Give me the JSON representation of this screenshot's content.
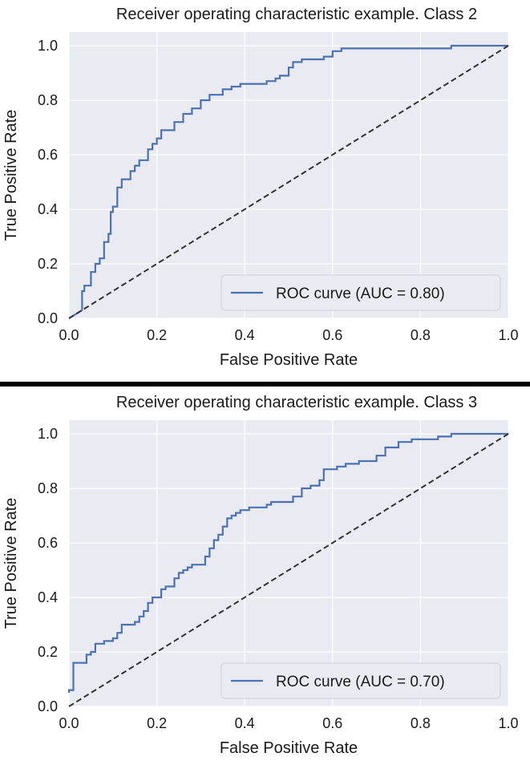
{
  "chart_data": [
    {
      "type": "line",
      "title": "Receiver operating characteristic example. Class 2",
      "xlabel": "False Positive Rate",
      "ylabel": "True Positive Rate",
      "xlim": [
        0,
        1
      ],
      "ylim": [
        0,
        1.05
      ],
      "xticks": [
        "0.0",
        "0.2",
        "0.4",
        "0.6",
        "0.8",
        "1.0"
      ],
      "yticks": [
        "0.0",
        "0.2",
        "0.4",
        "0.6",
        "0.8",
        "1.0"
      ],
      "grid": true,
      "legend_position": "lower-right",
      "series": [
        {
          "name": "ROC curve (AUC = 0.80)",
          "color": "#4c72b0",
          "x": [
            0.0,
            0.03,
            0.03,
            0.035,
            0.035,
            0.05,
            0.05,
            0.06,
            0.06,
            0.07,
            0.07,
            0.08,
            0.08,
            0.09,
            0.09,
            0.095,
            0.095,
            0.1,
            0.1,
            0.11,
            0.11,
            0.12,
            0.12,
            0.14,
            0.14,
            0.15,
            0.15,
            0.16,
            0.16,
            0.18,
            0.18,
            0.19,
            0.19,
            0.2,
            0.2,
            0.21,
            0.21,
            0.24,
            0.24,
            0.26,
            0.26,
            0.28,
            0.28,
            0.3,
            0.3,
            0.32,
            0.32,
            0.35,
            0.35,
            0.37,
            0.37,
            0.39,
            0.39,
            0.45,
            0.45,
            0.47,
            0.47,
            0.48,
            0.48,
            0.5,
            0.5,
            0.51,
            0.51,
            0.53,
            0.53,
            0.58,
            0.58,
            0.6,
            0.6,
            0.62,
            0.62,
            0.87,
            0.87,
            1.0
          ],
          "y": [
            0.0,
            0.03,
            0.1,
            0.1,
            0.12,
            0.12,
            0.17,
            0.17,
            0.2,
            0.2,
            0.22,
            0.22,
            0.28,
            0.28,
            0.31,
            0.31,
            0.39,
            0.39,
            0.41,
            0.41,
            0.48,
            0.48,
            0.51,
            0.51,
            0.54,
            0.54,
            0.56,
            0.56,
            0.58,
            0.58,
            0.62,
            0.62,
            0.64,
            0.64,
            0.66,
            0.66,
            0.69,
            0.69,
            0.72,
            0.72,
            0.75,
            0.75,
            0.77,
            0.77,
            0.8,
            0.8,
            0.82,
            0.82,
            0.84,
            0.84,
            0.85,
            0.85,
            0.86,
            0.86,
            0.87,
            0.87,
            0.88,
            0.88,
            0.89,
            0.89,
            0.92,
            0.92,
            0.94,
            0.94,
            0.95,
            0.95,
            0.96,
            0.96,
            0.98,
            0.98,
            0.99,
            0.99,
            1.0,
            1.0
          ]
        },
        {
          "color": "#333333",
          "style": "dashed",
          "x": [
            0,
            1
          ],
          "y": [
            0,
            1
          ]
        }
      ]
    },
    {
      "type": "line",
      "title": "Receiver operating characteristic example. Class 3",
      "xlabel": "False Positive Rate",
      "ylabel": "True Positive Rate",
      "xlim": [
        0,
        1
      ],
      "ylim": [
        0,
        1.05
      ],
      "xticks": [
        "0.0",
        "0.2",
        "0.4",
        "0.6",
        "0.8",
        "1.0"
      ],
      "yticks": [
        "0.0",
        "0.2",
        "0.4",
        "0.6",
        "0.8",
        "1.0"
      ],
      "grid": true,
      "legend_position": "lower-right",
      "series": [
        {
          "name": "ROC curve (AUC = 0.70)",
          "color": "#4c72b0",
          "x": [
            0.0,
            0.0,
            0.01,
            0.01,
            0.02,
            0.02,
            0.04,
            0.04,
            0.05,
            0.05,
            0.06,
            0.06,
            0.08,
            0.08,
            0.1,
            0.1,
            0.11,
            0.11,
            0.12,
            0.12,
            0.15,
            0.15,
            0.16,
            0.16,
            0.17,
            0.17,
            0.18,
            0.18,
            0.19,
            0.19,
            0.21,
            0.21,
            0.22,
            0.22,
            0.24,
            0.24,
            0.25,
            0.25,
            0.26,
            0.26,
            0.27,
            0.27,
            0.28,
            0.28,
            0.31,
            0.31,
            0.32,
            0.32,
            0.33,
            0.33,
            0.34,
            0.34,
            0.35,
            0.35,
            0.36,
            0.36,
            0.37,
            0.37,
            0.38,
            0.38,
            0.39,
            0.39,
            0.4,
            0.4,
            0.41,
            0.41,
            0.45,
            0.45,
            0.46,
            0.46,
            0.51,
            0.51,
            0.53,
            0.53,
            0.55,
            0.55,
            0.57,
            0.57,
            0.58,
            0.58,
            0.61,
            0.61,
            0.63,
            0.63,
            0.66,
            0.66,
            0.7,
            0.7,
            0.72,
            0.72,
            0.75,
            0.75,
            0.78,
            0.78,
            0.84,
            0.84,
            0.87,
            0.87,
            1.0
          ],
          "y": [
            0.05,
            0.06,
            0.06,
            0.16,
            0.16,
            0.16,
            0.16,
            0.19,
            0.19,
            0.2,
            0.2,
            0.23,
            0.23,
            0.24,
            0.24,
            0.25,
            0.25,
            0.27,
            0.27,
            0.3,
            0.3,
            0.31,
            0.31,
            0.33,
            0.33,
            0.35,
            0.35,
            0.38,
            0.38,
            0.4,
            0.4,
            0.43,
            0.43,
            0.44,
            0.44,
            0.47,
            0.47,
            0.49,
            0.49,
            0.5,
            0.5,
            0.51,
            0.51,
            0.52,
            0.52,
            0.55,
            0.55,
            0.58,
            0.58,
            0.61,
            0.61,
            0.63,
            0.63,
            0.66,
            0.66,
            0.69,
            0.69,
            0.7,
            0.7,
            0.71,
            0.71,
            0.72,
            0.72,
            0.72,
            0.72,
            0.73,
            0.73,
            0.74,
            0.74,
            0.75,
            0.75,
            0.77,
            0.77,
            0.8,
            0.8,
            0.81,
            0.81,
            0.83,
            0.83,
            0.87,
            0.87,
            0.88,
            0.88,
            0.89,
            0.89,
            0.9,
            0.9,
            0.92,
            0.92,
            0.95,
            0.95,
            0.97,
            0.97,
            0.98,
            0.98,
            0.99,
            0.99,
            1.0,
            1.0
          ]
        },
        {
          "color": "#333333",
          "style": "dashed",
          "x": [
            0,
            1
          ],
          "y": [
            0,
            1
          ]
        }
      ]
    }
  ]
}
